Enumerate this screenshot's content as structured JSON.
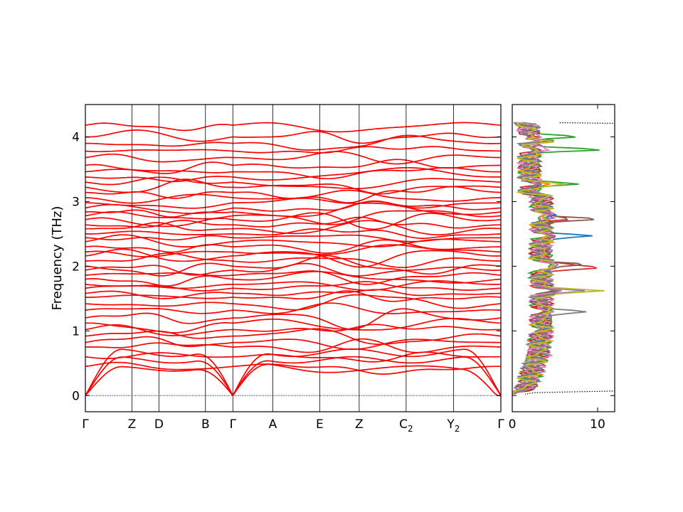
{
  "chart_data": [
    {
      "type": "line",
      "subtype": "phonon-band-structure",
      "title": "",
      "xlabel": "",
      "ylabel": "Frequency (THz)",
      "ylim": [
        -0.25,
        4.5
      ],
      "yticks": [
        0,
        1,
        2,
        3,
        4
      ],
      "grid": false,
      "legend": "none",
      "line_color": "#ff0000",
      "zero_line_color": "#0000cc",
      "kpath": [
        {
          "label": "Γ",
          "sub": "",
          "pos": 0.0
        },
        {
          "label": "Z",
          "sub": "",
          "pos": 0.112
        },
        {
          "label": "D",
          "sub": "",
          "pos": 0.177
        },
        {
          "label": "B",
          "sub": "",
          "pos": 0.289
        },
        {
          "label": "Γ",
          "sub": "",
          "pos": 0.355
        },
        {
          "label": "A",
          "sub": "",
          "pos": 0.451
        },
        {
          "label": "E",
          "sub": "",
          "pos": 0.564
        },
        {
          "label": "Z",
          "sub": "",
          "pos": 0.659
        },
        {
          "label": "C",
          "sub": "2",
          "pos": 0.772
        },
        {
          "label": "Y",
          "sub": "2",
          "pos": 0.886
        },
        {
          "label": "Γ",
          "sub": "",
          "pos": 1.0
        }
      ],
      "branch_break_pos": 0.355,
      "acoustic_endpoints": [
        0.45,
        0.6,
        0.72
      ],
      "optical_gamma_frequencies": [
        0.45,
        0.6,
        0.75,
        0.82,
        0.92,
        1.02,
        1.12,
        1.2,
        1.32,
        1.42,
        1.52,
        1.58,
        1.66,
        1.72,
        1.8,
        1.86,
        1.94,
        2.0,
        2.08,
        2.16,
        2.22,
        2.3,
        2.38,
        2.44,
        2.5,
        2.58,
        2.64,
        2.72,
        2.78,
        2.84,
        2.9,
        2.98,
        3.06,
        3.14,
        3.22,
        3.3,
        3.38,
        3.46,
        3.56,
        3.68,
        3.78,
        3.9,
        4.0,
        4.18
      ]
    },
    {
      "type": "line",
      "subtype": "phonon-density-of-states",
      "xlabel": "",
      "ylabel": "",
      "xlim": [
        0,
        12
      ],
      "ylim": [
        -0.25,
        4.5
      ],
      "xticks": [
        0,
        10
      ],
      "yticks": [
        0,
        1,
        2,
        3,
        4
      ],
      "series_colors": [
        "#1f77b4",
        "#ff7f0e",
        "#2ca02c",
        "#d62728",
        "#9467bd",
        "#8c564b",
        "#e377c2",
        "#7f7f7f",
        "#bcbd22"
      ],
      "peaks": [
        {
          "freq": 4.0,
          "values": [
            2.1,
            2.6,
            7.5,
            1.9,
            2.2,
            2.0,
            3.4,
            1.8,
            2.6
          ]
        },
        {
          "freq": 3.8,
          "values": [
            2.4,
            3.1,
            10.4,
            2.2,
            2.9,
            2.6,
            4.3,
            2.0,
            3.0
          ]
        },
        {
          "freq": 3.27,
          "values": [
            3.2,
            4.4,
            7.8,
            3.0,
            3.4,
            3.1,
            3.0,
            2.9,
            6.0
          ]
        },
        {
          "freq": 2.8,
          "values": [
            5.1,
            4.0,
            3.5,
            4.2,
            4.6,
            4.4,
            3.9,
            4.3,
            3.8
          ]
        },
        {
          "freq": 2.73,
          "values": [
            4.1,
            3.6,
            3.2,
            6.8,
            3.9,
            10.0,
            3.4,
            3.9,
            3.5
          ]
        },
        {
          "freq": 2.47,
          "values": [
            9.4,
            4.3,
            4.0,
            5.0,
            4.8,
            4.4,
            4.0,
            4.5,
            4.2
          ]
        },
        {
          "freq": 2.03,
          "values": [
            4.8,
            5.0,
            4.6,
            6.4,
            4.9,
            8.4,
            5.1,
            5.6,
            4.9
          ]
        },
        {
          "freq": 1.98,
          "values": [
            4.5,
            4.8,
            4.3,
            10.4,
            4.6,
            5.0,
            4.8,
            5.2,
            4.6
          ]
        },
        {
          "freq": 1.62,
          "values": [
            5.6,
            5.0,
            4.8,
            5.2,
            8.5,
            5.0,
            5.8,
            5.4,
            10.8
          ]
        },
        {
          "freq": 1.3,
          "values": [
            4.2,
            3.6,
            3.4,
            4.0,
            4.8,
            4.1,
            3.9,
            8.8,
            4.6
          ]
        },
        {
          "freq": 1.02,
          "values": [
            3.3,
            4.6,
            3.2,
            3.6,
            3.1,
            3.3,
            3.4,
            3.2,
            3.5
          ]
        },
        {
          "freq": 0.62,
          "values": [
            1.6,
            1.7,
            1.5,
            1.8,
            1.6,
            1.7,
            4.6,
            1.7,
            1.6
          ]
        },
        {
          "freq": 0.2,
          "values": [
            0.4,
            0.5,
            0.4,
            0.5,
            0.4,
            0.4,
            1.2,
            0.5,
            0.4
          ]
        }
      ],
      "total_dos_color": "#000000",
      "total_dos_style": "dotted"
    }
  ]
}
